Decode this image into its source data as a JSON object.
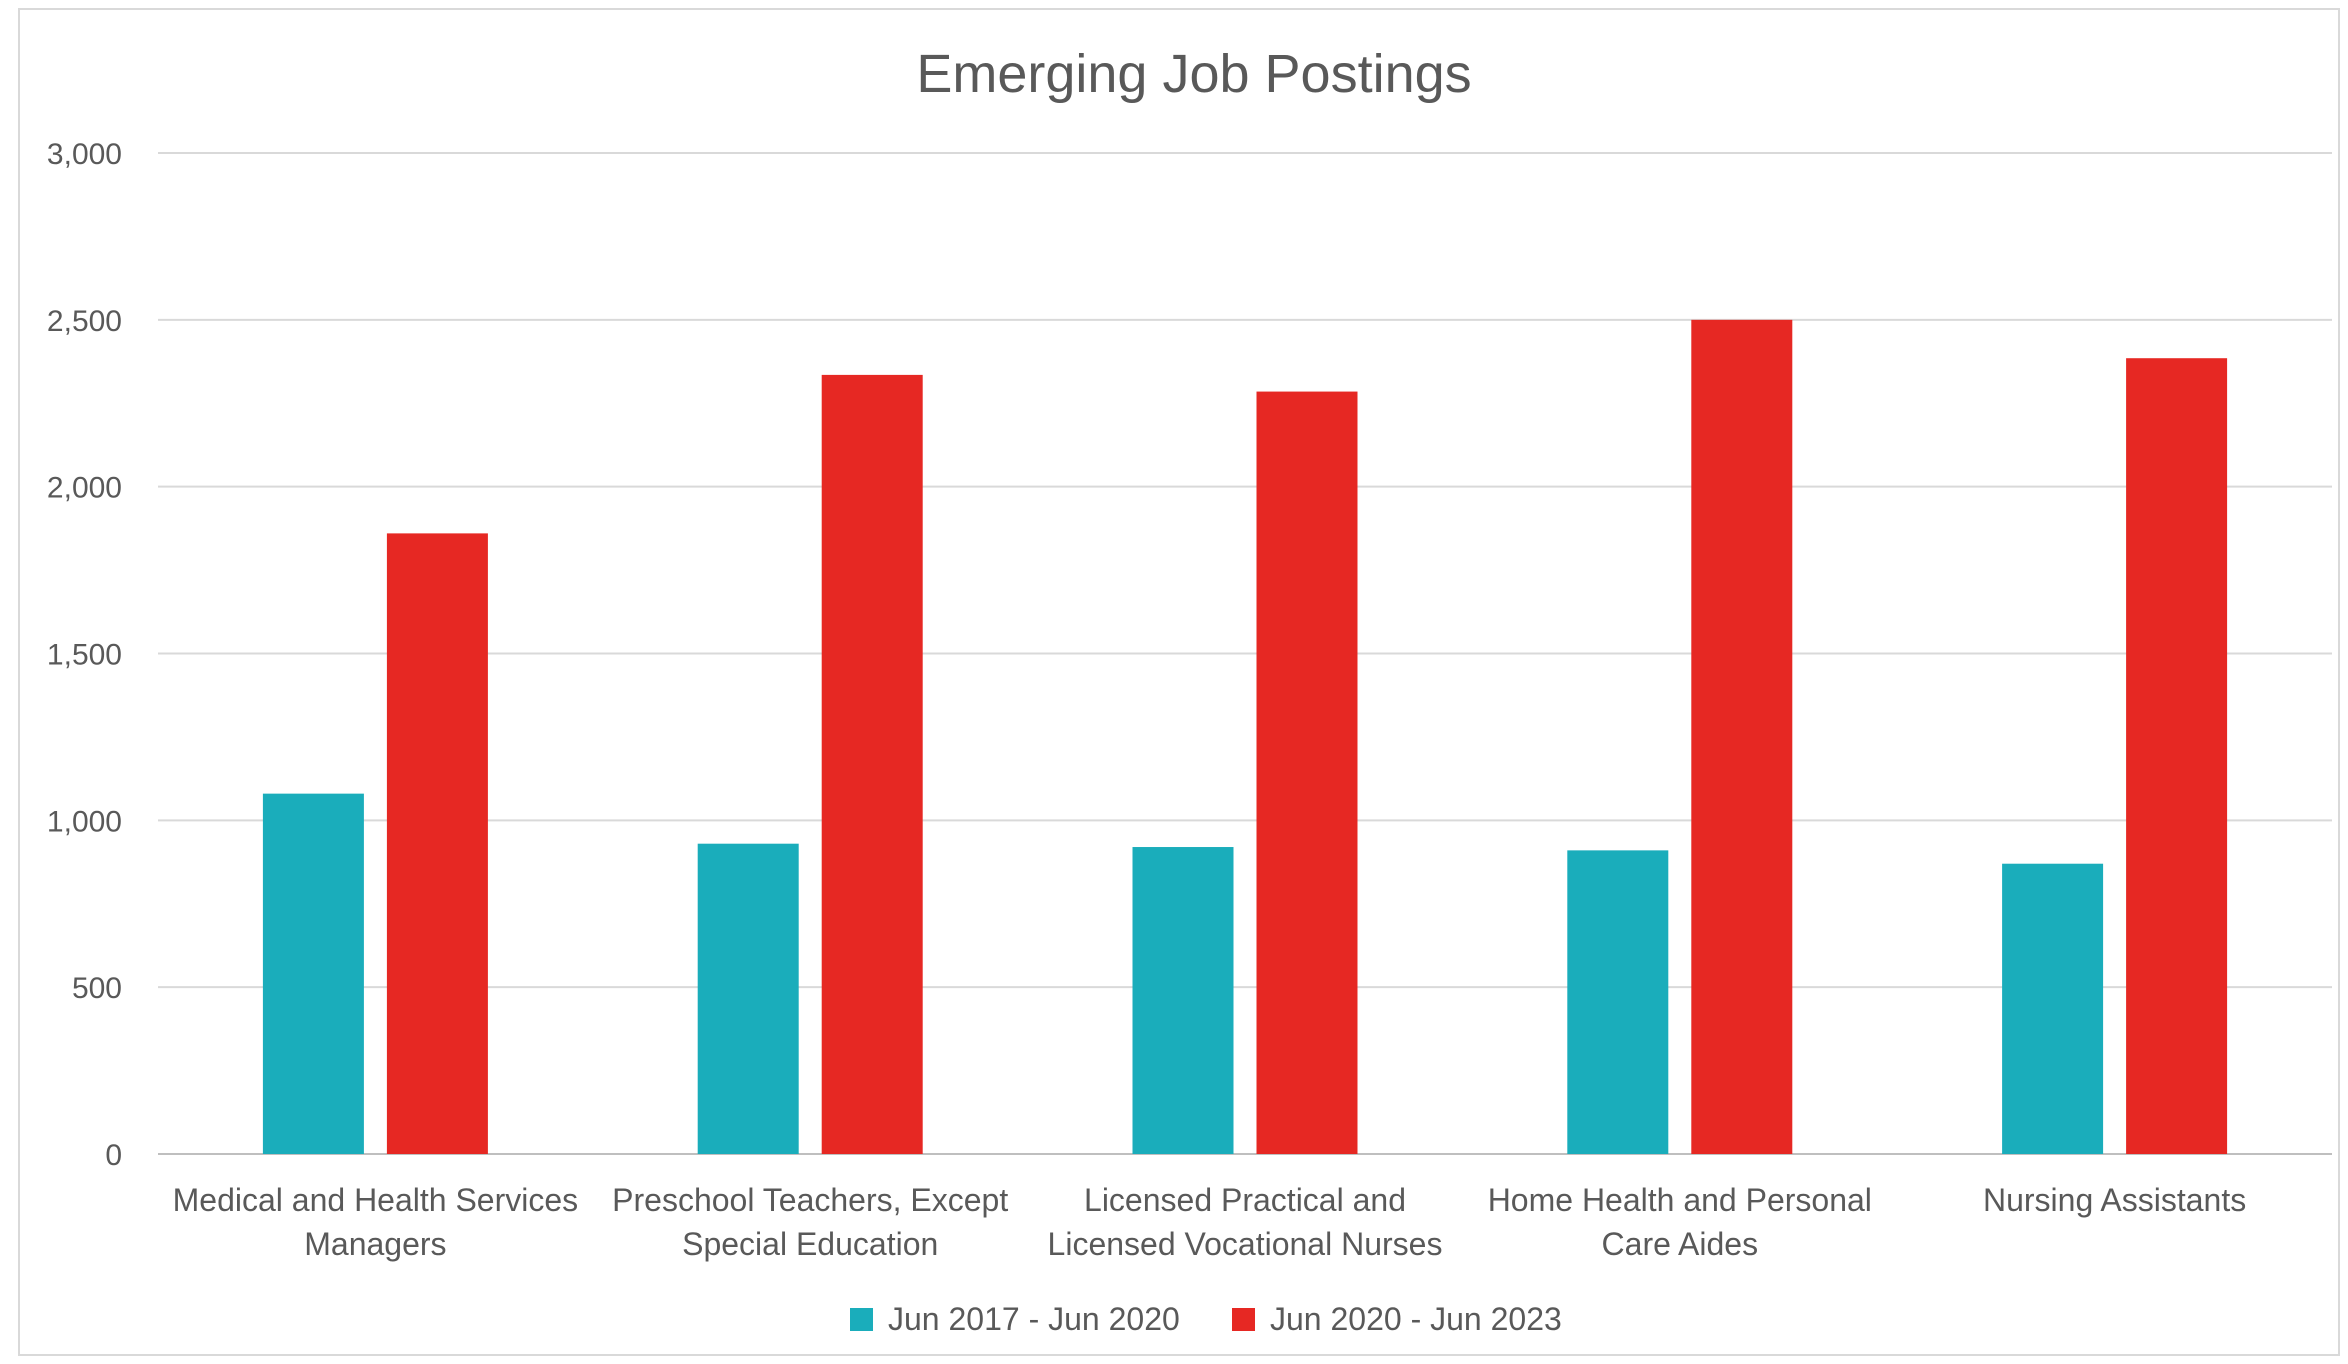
{
  "chart_data": {
    "type": "bar",
    "title": "Emerging Job Postings",
    "xlabel": "",
    "ylabel": "",
    "ylim": [
      0,
      3000
    ],
    "yticks": [
      0,
      500,
      1000,
      1500,
      2000,
      2500,
      3000
    ],
    "ytick_labels": [
      "0",
      "500",
      "1,000",
      "1,500",
      "2,000",
      "2,500",
      "3,000"
    ],
    "grid": true,
    "legend_position": "bottom",
    "categories": [
      [
        "Medical and Health Services",
        "Managers"
      ],
      [
        "Preschool Teachers, Except",
        "Special Education"
      ],
      [
        "Licensed Practical and",
        "Licensed Vocational Nurses"
      ],
      [
        "Home Health and Personal",
        "Care Aides"
      ],
      [
        "Nursing Assistants"
      ]
    ],
    "series": [
      {
        "name": "Jun 2017 - Jun 2020",
        "color": "#1aadbb",
        "values": [
          1080,
          930,
          920,
          910,
          870
        ]
      },
      {
        "name": "Jun 2020 - Jun 2023",
        "color": "#e62823",
        "values": [
          1860,
          2335,
          2285,
          2500,
          2385
        ]
      }
    ]
  }
}
